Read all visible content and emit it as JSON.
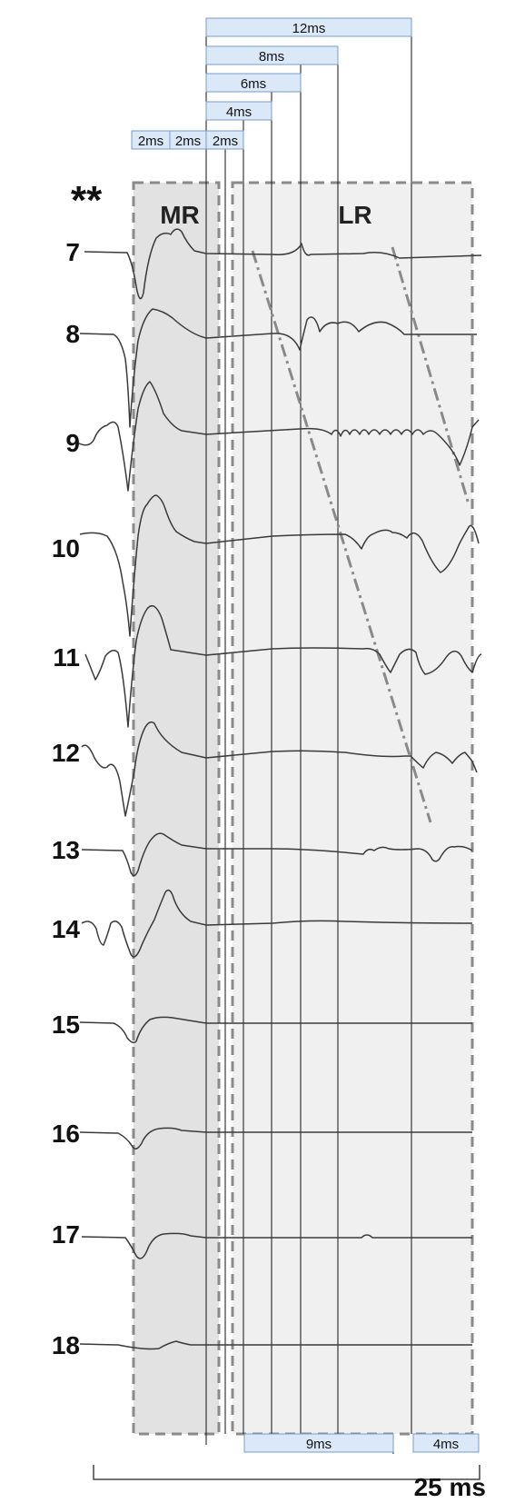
{
  "figure": {
    "marker": "**",
    "regions": {
      "mr": "MR",
      "lr": "LR"
    },
    "channels": [
      "7",
      "8",
      "9",
      "10",
      "11",
      "12",
      "13",
      "14",
      "15",
      "16",
      "17",
      "18"
    ],
    "top_intervals": [
      "12ms",
      "8ms",
      "6ms",
      "4ms",
      "2ms",
      "2ms",
      "2ms"
    ],
    "bottom_intervals": [
      "9ms",
      "4ms"
    ],
    "scale_bar": "25 ms"
  },
  "colors": {
    "box_fill": "#dbe8f8",
    "box_stroke": "#7a9cc6",
    "mr_region": "#e2e2e2",
    "lr_region": "#f0f0f0",
    "dashed_border": "#8a8a8a",
    "trace": "#3a3a3a",
    "propagation_line": "#8a8a8a"
  }
}
